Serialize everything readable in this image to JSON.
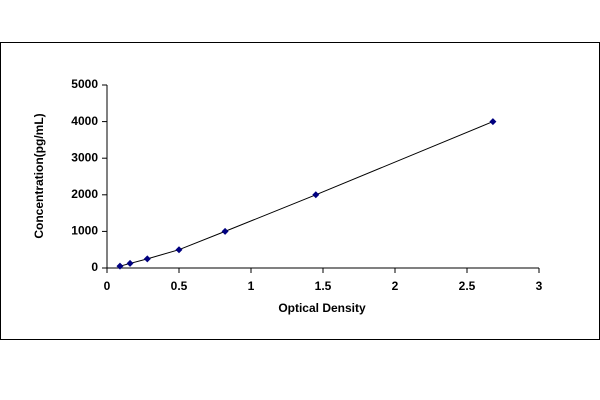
{
  "chart_data": {
    "type": "scatter",
    "x_label": "Optical Density",
    "y_label": "Concentration(pg/mL)",
    "series": [
      {
        "color": "#000080",
        "x": [
          0.09,
          0.16,
          0.28,
          0.5,
          0.82,
          1.45,
          2.68
        ],
        "values": [
          50,
          125,
          250,
          500,
          1000,
          2000,
          4000
        ]
      }
    ],
    "xlim": [
      0,
      3
    ],
    "xticks": [
      0,
      0.5,
      1,
      1.5,
      2,
      2.5,
      3
    ],
    "ylim": [
      0,
      5000
    ],
    "yticks": [
      0,
      1000,
      2000,
      3000,
      4000,
      5000
    ],
    "grid": false
  }
}
